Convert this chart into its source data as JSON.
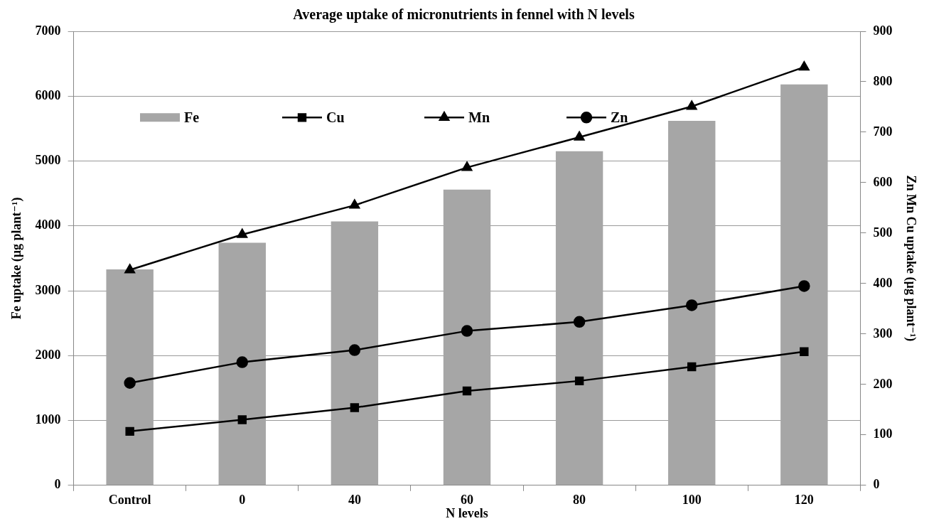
{
  "chart_data": {
    "type": "bar",
    "title": "Average uptake of micronutrients in fennel with N levels",
    "xlabel": "N levels",
    "ylabel": "Fe uptake (µg plant⁻¹)",
    "y2label": "Zn Mn Cu uptake (µg plant⁻¹)",
    "categories": [
      "Control",
      "0",
      "40",
      "60",
      "80",
      "100",
      "120"
    ],
    "series": [
      {
        "name": "Fe",
        "color": "#a6a6a6",
        "values": [
          3330,
          3740,
          4070,
          4560,
          5150,
          5620,
          6180
        ]
      },
      {
        "name": "Cu",
        "type": "line",
        "axis": "y2",
        "marker": "square",
        "color": "#000000",
        "values": [
          107,
          130,
          154,
          187,
          207,
          235,
          265
        ]
      },
      {
        "name": "Mn",
        "type": "line",
        "axis": "y2",
        "marker": "triangle",
        "color": "#000000",
        "values": [
          427,
          497,
          555,
          630,
          690,
          751,
          829
        ]
      },
      {
        "name": "Zn",
        "type": "line",
        "axis": "y2",
        "marker": "circle",
        "color": "#000000",
        "values": [
          203,
          244,
          268,
          306,
          324,
          357,
          395
        ]
      }
    ],
    "ylim": [
      0,
      7000
    ],
    "yticks": [
      0,
      1000,
      2000,
      3000,
      4000,
      5000,
      6000,
      7000
    ],
    "y2lim": [
      0,
      900
    ],
    "y2ticks": [
      0,
      100,
      200,
      300,
      400,
      500,
      600,
      700,
      800,
      900
    ],
    "grid": "y",
    "legend": "top",
    "line_style": "solid"
  }
}
